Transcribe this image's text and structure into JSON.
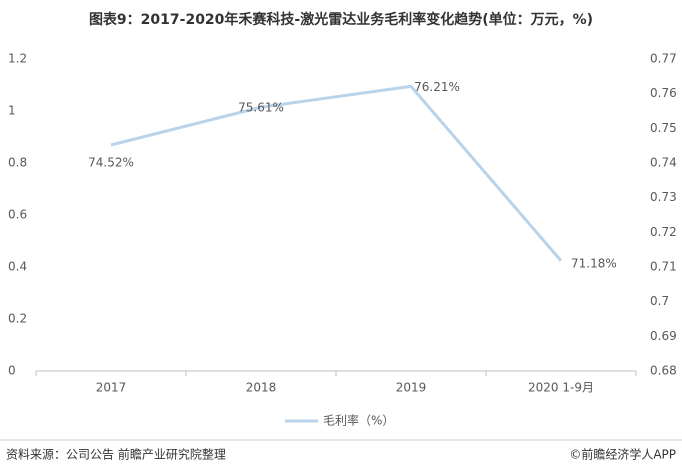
{
  "chart_data": {
    "type": "line",
    "title": "图表9：2017-2020年禾赛科技-激光雷达业务毛利率变化趋势(单位：万元，%)",
    "categories": [
      "2017",
      "2018",
      "2019",
      "2020 1-9月"
    ],
    "ylim": [
      0,
      1.2
    ],
    "yticks": [
      0,
      0.2,
      0.4,
      0.6,
      0.8,
      1,
      1.2
    ],
    "y2lim": [
      0.68,
      0.77
    ],
    "y2ticks": [
      0.68,
      0.69,
      0.7,
      0.71,
      0.72,
      0.73,
      0.74,
      0.75,
      0.76,
      0.77
    ],
    "series": [
      {
        "name": "毛利率（%）",
        "color": "#b9d3ea",
        "axis": "y2",
        "values": [
          0.7452,
          0.7561,
          0.7621,
          0.7118
        ],
        "value_labels": [
          "74.52%",
          "75.61%",
          "76.21%",
          "71.18%"
        ]
      }
    ],
    "legend": "bottom",
    "source": "资料来源：公司公告 前瞻产业研究院整理",
    "credit": "©前瞻经济学人APP"
  }
}
